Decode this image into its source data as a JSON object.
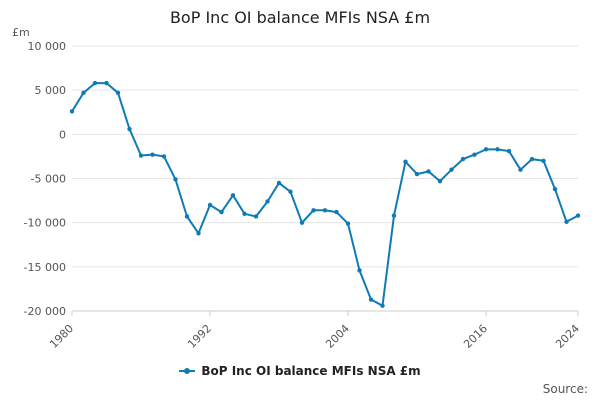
{
  "page": {
    "source": "Source:"
  },
  "chart_data": {
    "type": "line",
    "title": "BoP Inc OI balance MFIs NSA £m",
    "xlabel": "",
    "ylabel": "£m",
    "xlim": [
      1980,
      2024
    ],
    "ylim": [
      -20000,
      10000
    ],
    "x_ticks": [
      1980,
      1992,
      2004,
      2016,
      2024
    ],
    "y_ticks": [
      10000,
      5000,
      0,
      -5000,
      -10000,
      -15000,
      -20000
    ],
    "y_tick_labels": [
      "10 000",
      "5 000",
      "0",
      "-5 000",
      "-10 000",
      "-15 000",
      "-20 000"
    ],
    "grid": true,
    "legend": "bottom-center",
    "color": "#0f7bb5",
    "series": [
      {
        "name": "BoP Inc OI balance MFIs NSA £m",
        "x": [
          1980,
          1981,
          1982,
          1983,
          1984,
          1985,
          1986,
          1987,
          1988,
          1989,
          1990,
          1991,
          1992,
          1993,
          1994,
          1995,
          1996,
          1997,
          1998,
          1999,
          2000,
          2001,
          2002,
          2003,
          2004,
          2005,
          2006,
          2007,
          2008,
          2009,
          2010,
          2011,
          2012,
          2013,
          2014,
          2015,
          2016,
          2017,
          2018,
          2019,
          2020,
          2021,
          2022,
          2023,
          2024
        ],
        "values": [
          2600,
          4700,
          5800,
          5800,
          4700,
          600,
          -2400,
          -2300,
          -2500,
          -5100,
          -9300,
          -11200,
          -8000,
          -8800,
          -6900,
          -9000,
          -9300,
          -7600,
          -5500,
          -6500,
          -10000,
          -8600,
          -8600,
          -8800,
          -10100,
          -15400,
          -18700,
          -19400,
          -9200,
          -3100,
          -4500,
          -4200,
          -5300,
          -4000,
          -2800,
          -2300,
          -1700,
          -1700,
          -1900,
          -4000,
          -2800,
          -3000,
          -6200,
          -9900,
          -9200
        ]
      }
    ]
  }
}
